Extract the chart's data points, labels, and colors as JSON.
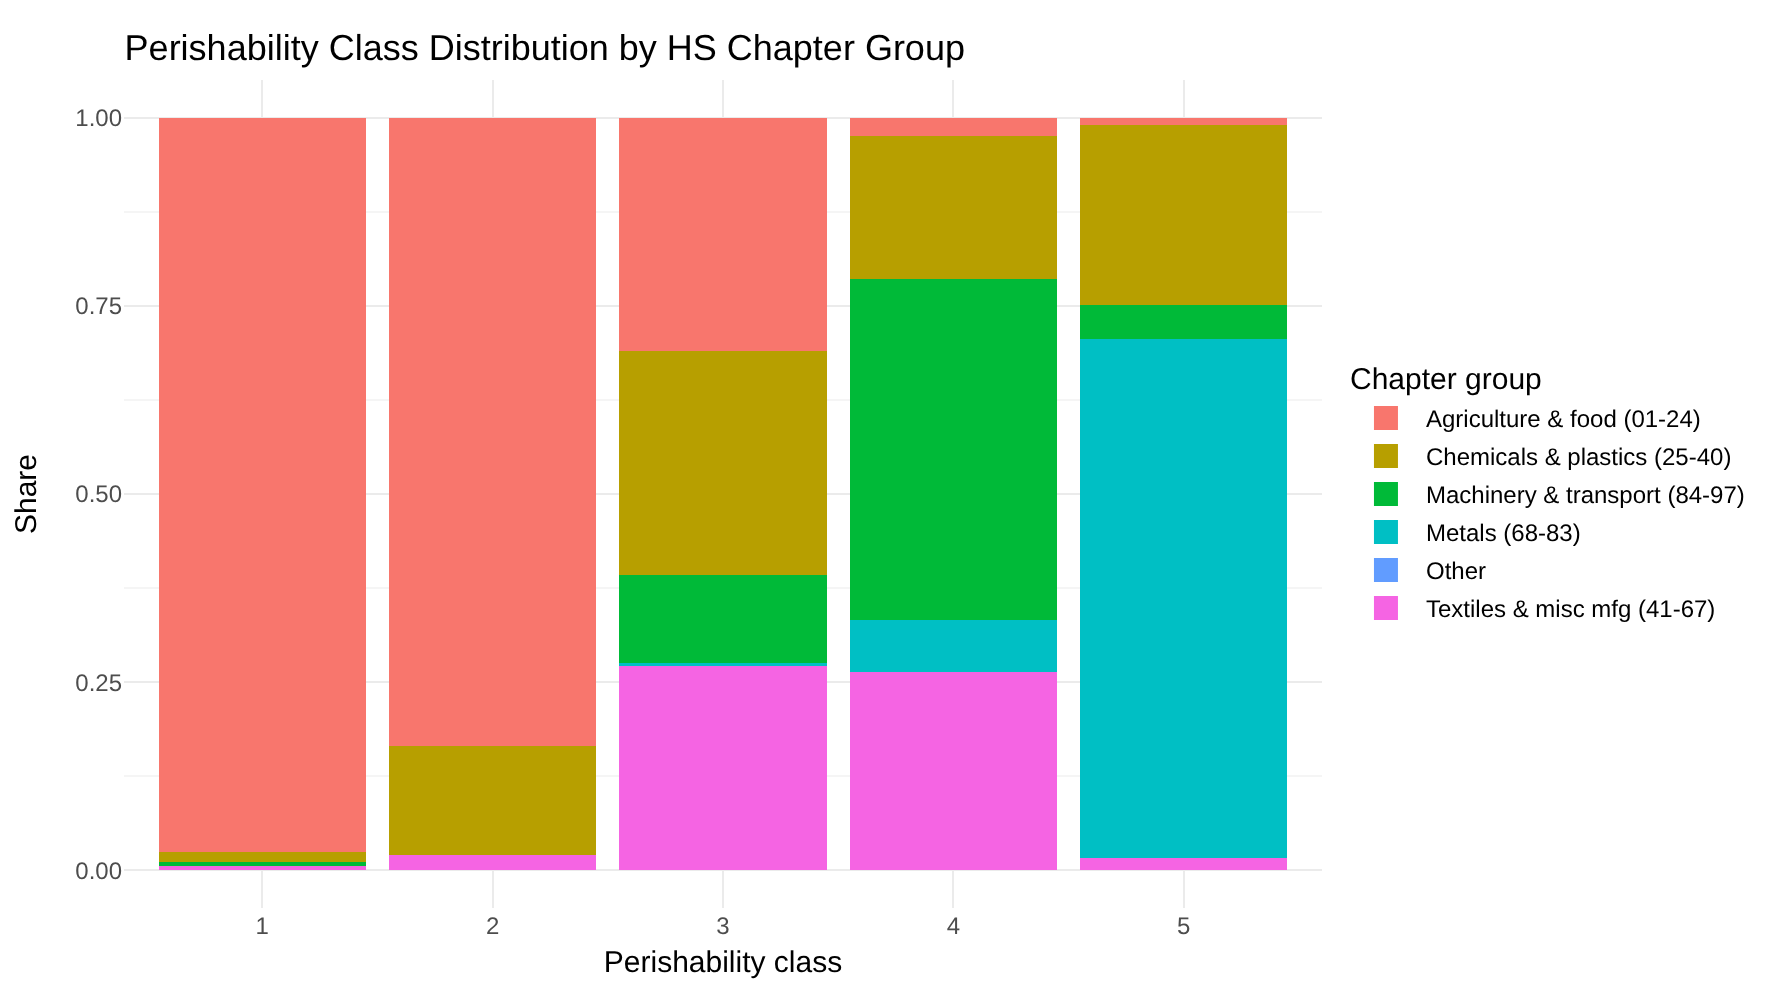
{
  "chart_data": {
    "type": "bar",
    "title": "Perishability Class Distribution by HS Chapter Group",
    "xlabel": "Perishability class",
    "ylabel": "Share",
    "legend_title": "Chapter group",
    "categories": [
      "1",
      "2",
      "3",
      "4",
      "5"
    ],
    "stacked": true,
    "series": [
      {
        "name": "Textiles & misc mfg (41-67)",
        "color": "#f564e3",
        "values": [
          0.006,
          0.02,
          0.273,
          0.263,
          0.016
        ]
      },
      {
        "name": "Other",
        "color": "#619cff",
        "values": [
          0,
          0,
          0,
          0,
          0
        ]
      },
      {
        "name": "Metals (68-83)",
        "color": "#00bfc4",
        "values": [
          0,
          0,
          0.003,
          0.069,
          0.69
        ]
      },
      {
        "name": "Machinery & transport (84-97)",
        "color": "#00ba38",
        "values": [
          0.005,
          0,
          0.116,
          0.453,
          0.045
        ]
      },
      {
        "name": "Chemicals & plastics (25-40)",
        "color": "#b79f00",
        "values": [
          0.013,
          0.145,
          0.298,
          0.191,
          0.239
        ]
      },
      {
        "name": "Agriculture & food (01-24)",
        "color": "#f8766d",
        "values": [
          0.976,
          0.835,
          0.31,
          0.024,
          0.01
        ]
      }
    ],
    "ylim": [
      -0.05,
      1.05
    ],
    "yticks": [
      {
        "value": 0,
        "label": "0.00"
      },
      {
        "value": 0.25,
        "label": "0.25"
      },
      {
        "value": 0.5,
        "label": "0.50"
      },
      {
        "value": 0.75,
        "label": "0.75"
      },
      {
        "value": 1,
        "label": "1.00"
      }
    ],
    "grid": true,
    "legend": "right"
  }
}
